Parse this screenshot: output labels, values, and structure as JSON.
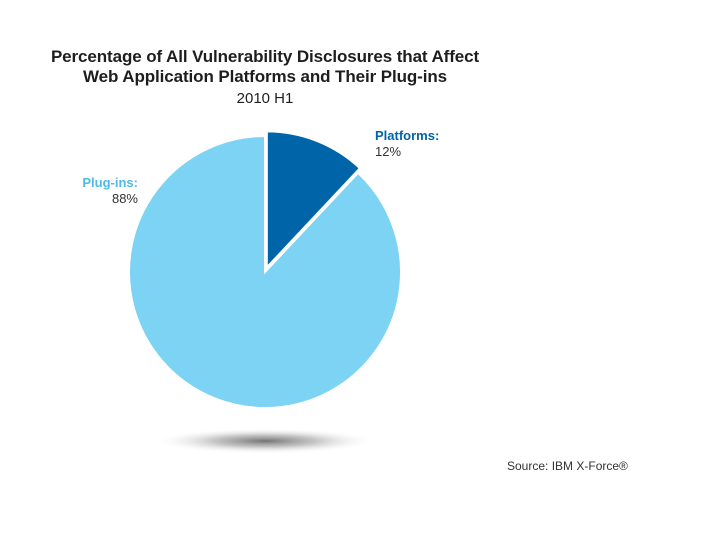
{
  "chart_data": {
    "type": "pie",
    "title": "Percentage of All Vulnerability Disclosures that Affect Web Application Platforms and Their Plug-ins",
    "title_lines": [
      "Percentage of All Vulnerability Disclosures that Affect",
      "Web Application Platforms and Their Plug-ins"
    ],
    "subtitle": "2010 H1",
    "categories": [
      "Platforms",
      "Plug-ins"
    ],
    "values": [
      12,
      88
    ],
    "unit": "%",
    "exploded": "Platforms",
    "labels": [
      {
        "name": "Platforms:",
        "value": "12%"
      },
      {
        "name": "Plug-ins:",
        "value": "88%"
      }
    ],
    "colors": [
      "#0065a8",
      "#7dd3f3"
    ],
    "label_colors": [
      "#0065a8",
      "#4fb9e6"
    ],
    "source": "Source: IBM X-Force®"
  }
}
